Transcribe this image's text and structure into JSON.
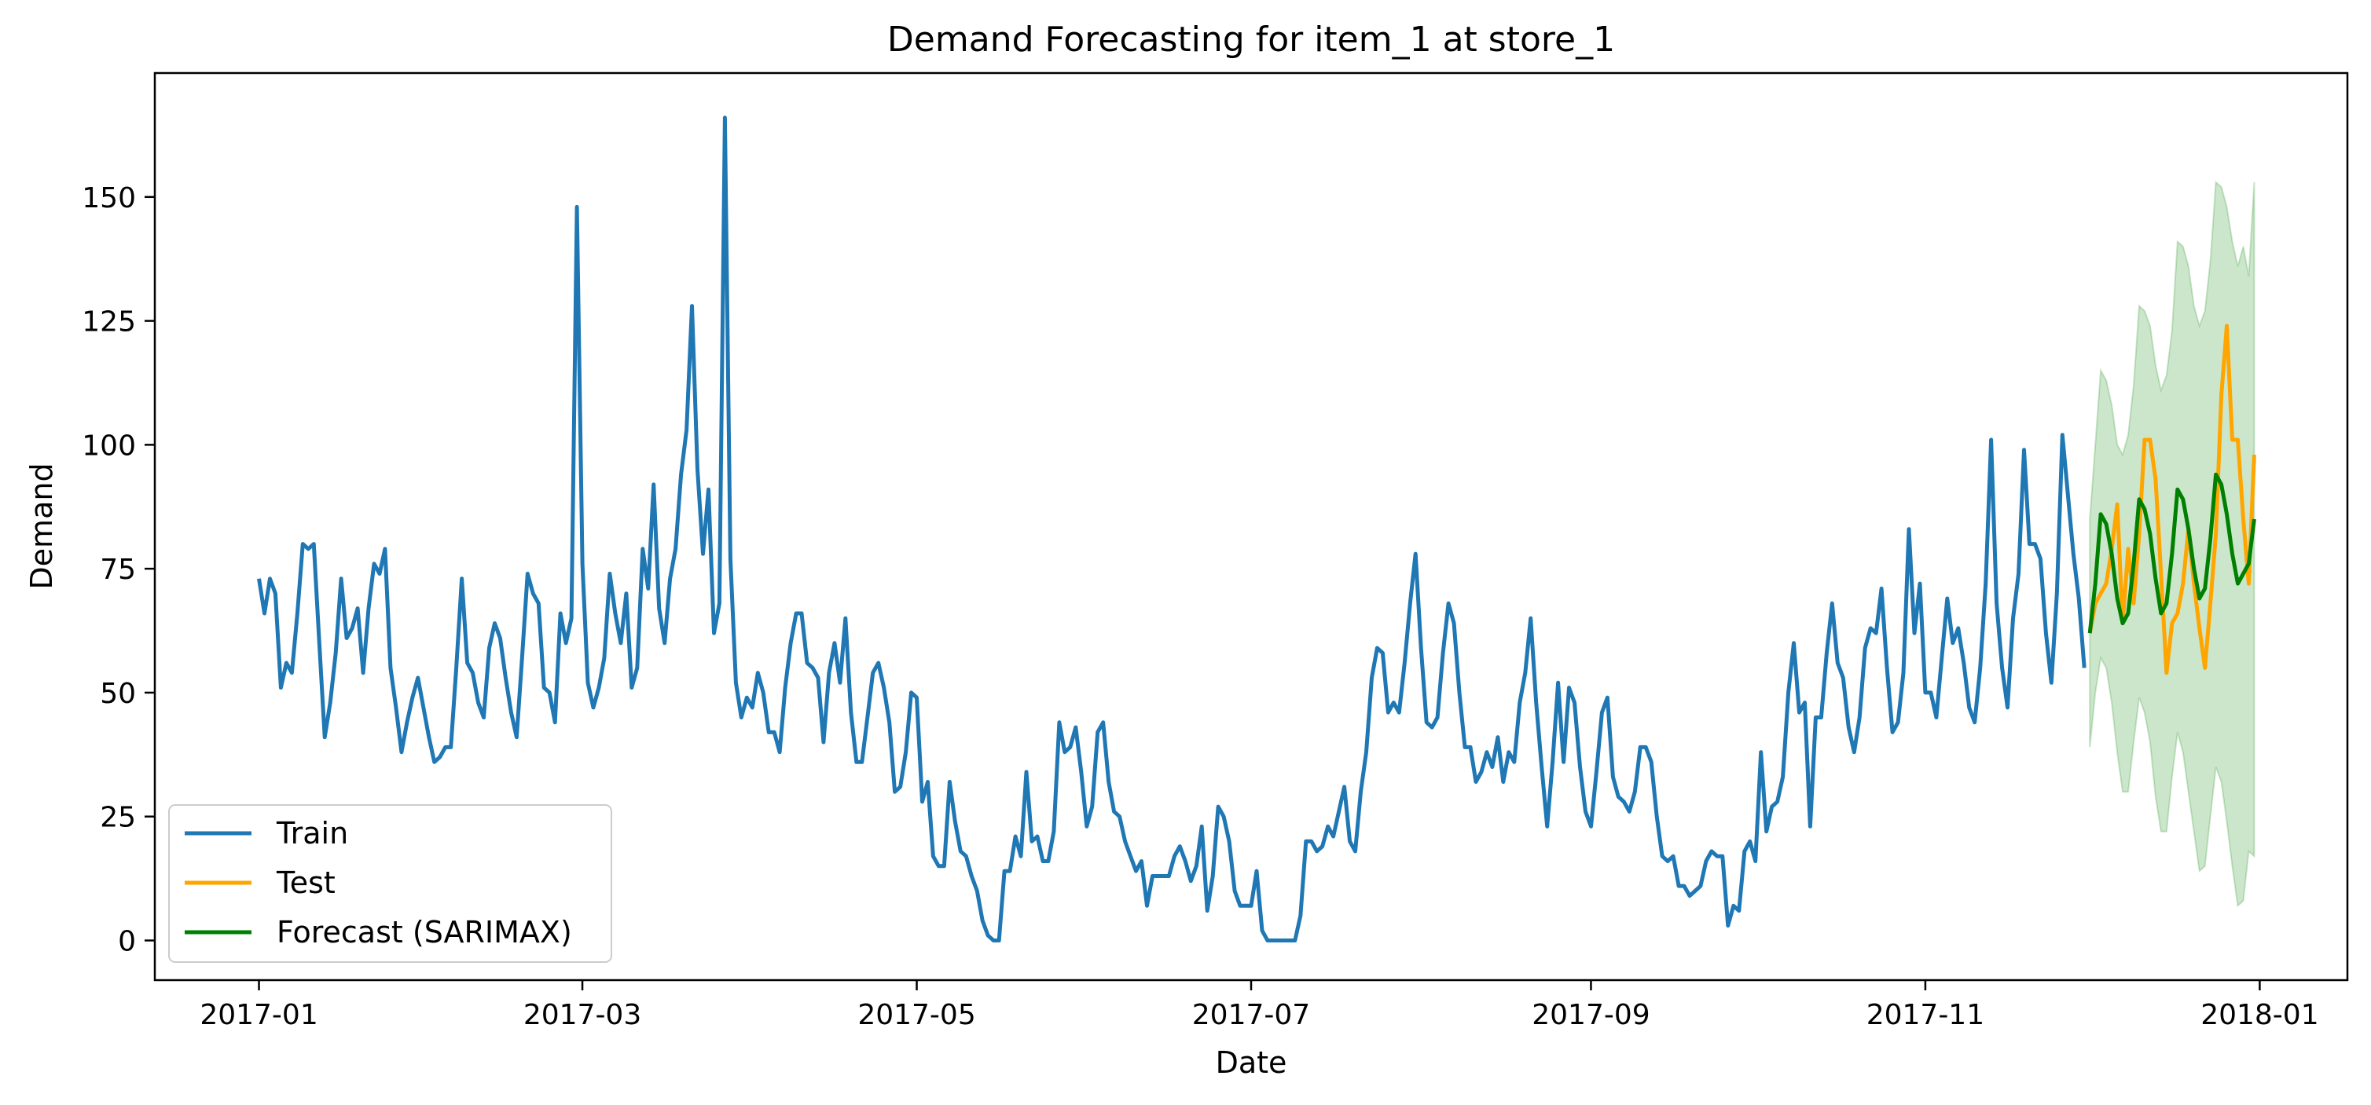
{
  "chart_data": {
    "type": "line",
    "title": "Demand Forecasting for item_1 at store_1",
    "xlabel": "Date",
    "ylabel": "Demand",
    "xlim": [
      "2016-12-13",
      "2018-01-17"
    ],
    "ylim": [
      -8,
      175
    ],
    "x_ticks": [
      "2017-01-01",
      "2017-03-01",
      "2017-05-01",
      "2017-07-01",
      "2017-09-01",
      "2017-11-01",
      "2018-01-01"
    ],
    "x_tick_labels": [
      "2017-01",
      "2017-03",
      "2017-05",
      "2017-07",
      "2017-09",
      "2017-11",
      "2018-01"
    ],
    "y_ticks": [
      0,
      25,
      50,
      75,
      100,
      125,
      150
    ],
    "legend_position": "lower-left",
    "grid": false,
    "series": [
      {
        "name": "Train",
        "color": "#1f77b4",
        "start_date": "2017-01-01",
        "step_days": 1,
        "values": [
          73,
          66,
          73,
          70,
          51,
          56,
          54,
          66,
          80,
          79,
          80,
          60,
          41,
          48,
          58,
          73,
          61,
          63,
          67,
          54,
          67,
          76,
          74,
          79,
          55,
          47,
          38,
          44,
          49,
          53,
          47,
          41,
          36,
          37,
          39,
          39,
          55,
          73,
          56,
          54,
          48,
          45,
          59,
          64,
          61,
          53,
          46,
          41,
          57,
          74,
          70,
          68,
          51,
          50,
          44,
          66,
          60,
          65,
          148,
          76,
          52,
          47,
          51,
          57,
          74,
          66,
          60,
          70,
          51,
          55,
          79,
          71,
          92,
          67,
          60,
          73,
          79,
          94,
          103,
          128,
          95,
          78,
          91,
          62,
          68,
          166,
          77,
          52,
          45,
          49,
          47,
          54,
          50,
          42,
          42,
          38,
          51,
          60,
          66,
          66,
          56,
          55,
          53,
          40,
          54,
          60,
          52,
          65,
          46,
          36,
          36,
          45,
          54,
          56,
          51,
          44,
          30,
          31,
          38,
          50,
          49,
          28,
          32,
          17,
          15,
          15,
          32,
          24,
          18,
          17,
          13,
          10,
          4,
          1,
          0,
          0,
          14,
          14,
          21,
          17,
          34,
          20,
          21,
          16,
          16,
          22,
          44,
          38,
          39,
          43,
          34,
          23,
          27,
          42,
          44,
          32,
          26,
          25,
          20,
          17,
          14,
          16,
          7,
          13,
          13,
          13,
          13,
          17,
          19,
          16,
          12,
          15,
          23,
          6,
          13,
          27,
          25,
          20,
          10,
          7,
          7,
          7,
          14,
          2,
          0,
          0,
          0,
          0,
          0,
          0,
          5,
          20,
          20,
          18,
          19,
          23,
          21,
          26,
          31,
          20,
          18,
          30,
          38,
          53,
          59,
          58,
          46,
          48,
          46,
          56,
          68,
          78,
          59,
          44,
          43,
          45,
          58,
          68,
          64,
          50,
          39,
          39,
          32,
          34,
          38,
          35,
          41,
          32,
          38,
          36,
          48,
          54,
          65,
          48,
          35,
          23,
          36,
          52,
          36,
          51,
          48,
          35,
          26,
          23,
          34,
          46,
          49,
          33,
          29,
          28,
          26,
          30,
          39,
          39,
          36,
          25,
          17,
          16,
          17,
          11,
          11,
          9,
          10,
          11,
          16,
          18,
          17,
          17,
          3,
          7,
          6,
          18,
          20,
          16,
          38,
          22,
          27,
          28,
          33,
          50,
          60,
          46,
          48,
          23,
          45,
          45,
          58,
          68,
          56,
          53,
          43,
          38,
          45,
          59,
          63,
          62,
          71,
          55,
          42,
          44,
          54,
          83,
          62,
          72,
          50,
          50,
          45,
          57,
          69,
          60,
          63,
          56,
          47,
          44,
          55,
          72,
          101,
          68,
          55,
          47,
          65,
          74,
          99,
          80,
          80,
          77,
          62,
          52,
          70,
          102,
          90,
          78,
          69,
          55
        ]
      },
      {
        "name": "Test",
        "color": "#ffa500",
        "start_date": "2017-12-01",
        "step_days": 1,
        "values": [
          62,
          68,
          70,
          72,
          79,
          88,
          64,
          79,
          68,
          82,
          101,
          101,
          93,
          74,
          54,
          64,
          66,
          72,
          83,
          72,
          63,
          55,
          68,
          82,
          110,
          124,
          101,
          101,
          85,
          72,
          98
        ]
      },
      {
        "name": "Forecast (SARIMAX)",
        "color": "#008000",
        "start_date": "2017-12-01",
        "step_days": 1,
        "values": [
          62,
          72,
          86,
          84,
          78,
          69,
          64,
          66,
          76,
          89,
          87,
          82,
          73,
          66,
          68,
          78,
          91,
          89,
          83,
          75,
          69,
          71,
          81,
          94,
          92,
          86,
          78,
          72,
          74,
          76,
          85
        ],
        "ci_lower": [
          39,
          50,
          57,
          55,
          48,
          38,
          30,
          30,
          40,
          49,
          46,
          40,
          29,
          22,
          22,
          33,
          42,
          38,
          30,
          22,
          14,
          15,
          25,
          35,
          32,
          24,
          15,
          7,
          8,
          18,
          17
        ],
        "ci_upper": [
          85,
          100,
          115,
          113,
          108,
          100,
          98,
          102,
          112,
          128,
          127,
          124,
          116,
          111,
          114,
          123,
          141,
          140,
          136,
          128,
          124,
          127,
          137,
          153,
          152,
          148,
          141,
          136,
          140,
          134,
          153
        ],
        "ci_color": "#008000"
      }
    ]
  }
}
